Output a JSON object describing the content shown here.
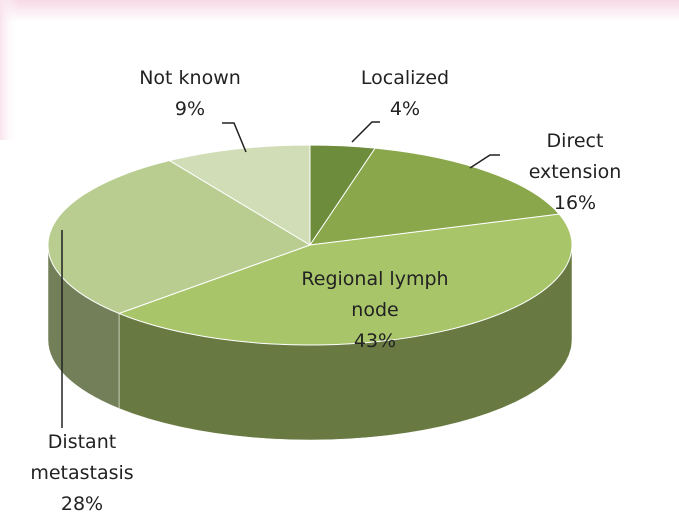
{
  "chart_data": {
    "type": "pie3d",
    "categories": [
      "Localized",
      "Direct extension",
      "Regional lymph node",
      "Distant metastasis",
      "Not known"
    ],
    "values": [
      4,
      16,
      43,
      28,
      9
    ],
    "value_labels": [
      "4%",
      "16%",
      "43%",
      "28%",
      "9%"
    ],
    "colors": [
      "#6e8d3c",
      "#8aa74b",
      "#a8c56a",
      "#b8cd8f",
      "#d0ddb6"
    ]
  }
}
